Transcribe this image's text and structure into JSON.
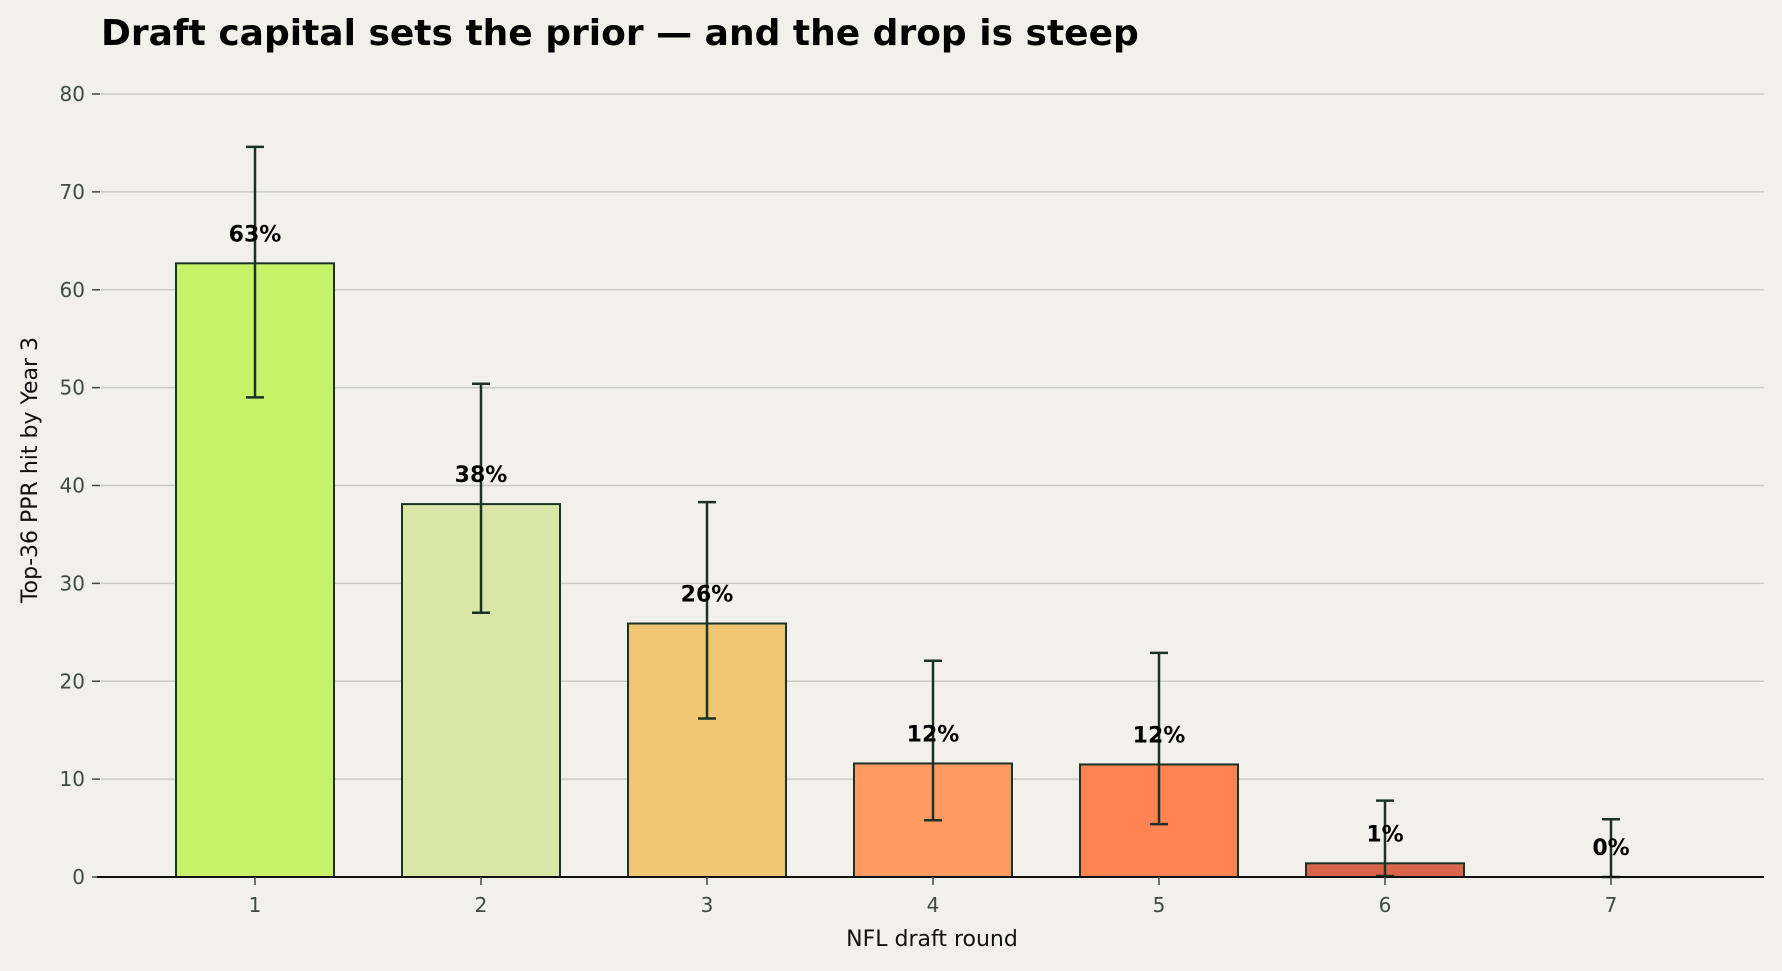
{
  "chart_data": {
    "type": "bar",
    "title": "Draft capital sets the prior — and the drop is steep",
    "xlabel": "NFL draft round",
    "ylabel": "Top-36 PPR hit by Year 3",
    "categories": [
      "1",
      "2",
      "3",
      "4",
      "5",
      "6",
      "7"
    ],
    "values": [
      62.7,
      38.1,
      25.9,
      11.6,
      11.5,
      1.4,
      0
    ],
    "error_low": [
      49.0,
      27.0,
      16.2,
      5.8,
      5.4,
      0.1,
      0
    ],
    "error_high": [
      74.6,
      50.4,
      38.3,
      22.1,
      22.9,
      7.8,
      5.9
    ],
    "data_labels": [
      "63%",
      "38%",
      "26%",
      "12%",
      "12%",
      "1%",
      "0%"
    ],
    "bar_colors": [
      "#c7f267",
      "#d9e6a8",
      "#f0c672",
      "#ff9a60",
      "#ff8451",
      "#d9664a",
      "#b44a3a"
    ],
    "ylim": [
      0,
      80
    ],
    "yticks": [
      "0",
      "10",
      "20",
      "30",
      "40",
      "50",
      "60",
      "70",
      "80"
    ],
    "grid": true,
    "legend": "none"
  },
  "colors": {
    "background": "#f2f0ea",
    "gridline": "#c9ccc4",
    "bar_edge": "#1c3128",
    "errorbar": "#1c3128"
  }
}
